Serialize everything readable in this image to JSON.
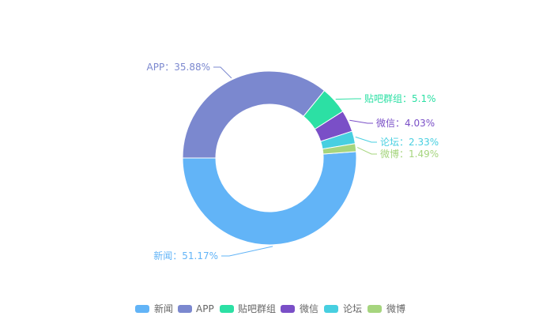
{
  "chart_data": {
    "type": "pie",
    "variant": "donut",
    "legend_position": "bottom",
    "slices": [
      {
        "name": "新闻",
        "value": 51.17,
        "label": "新闻：51.17%",
        "color": "#62b4f7"
      },
      {
        "name": "APP",
        "value": 35.88,
        "label": "APP：35.88%",
        "color": "#7b88cf"
      },
      {
        "name": "贴吧群组",
        "value": 5.1,
        "label": "贴吧群组：5.1%",
        "color": "#2ce0a4"
      },
      {
        "name": "微信",
        "value": 4.03,
        "label": "微信：4.03%",
        "color": "#7a4fc7"
      },
      {
        "name": "论坛",
        "value": 2.33,
        "label": "论坛：2.33%",
        "color": "#47cfe0"
      },
      {
        "name": "微博",
        "value": 1.49,
        "label": "微博：1.49%",
        "color": "#a6d57e"
      }
    ]
  }
}
